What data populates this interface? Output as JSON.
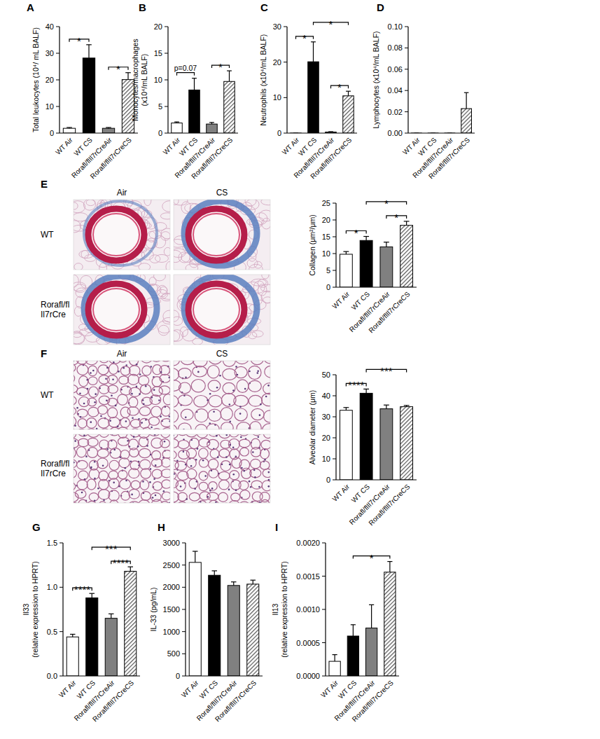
{
  "chart_data": [
    {
      "type": "bar",
      "title": "A",
      "y_label": "Total leukocytes (10⁴/ mL BALF)",
      "categories": [
        "WT Air",
        "WT CS",
        "Rorafl/flIl7rCreAir",
        "Rorafl/flIl7rCreCS"
      ],
      "values": [
        1.8,
        28.2,
        1.8,
        20.1
      ],
      "errors": [
        0.3,
        5.0,
        0.3,
        2.6
      ],
      "colors": [
        "#ffffff",
        "#000000",
        "#808080",
        "#555555"
      ],
      "ylim": [
        0,
        40
      ],
      "yticks": [
        0,
        10,
        20,
        30,
        40
      ],
      "annotations": [
        {
          "text": "*",
          "from": 0,
          "to": 1
        },
        {
          "text": "*",
          "from": 2,
          "to": 3
        }
      ]
    },
    {
      "type": "bar",
      "title": "B",
      "y_label": [
        "Monocytes/macrophages",
        "(x10⁴/mL BALF)"
      ],
      "categories": [
        "WT Air",
        "WT CS",
        "Rorafl/flIl7rCreAir",
        "Rorafl/flIl7rCreCS"
      ],
      "values": [
        1.9,
        8.1,
        1.7,
        9.7
      ],
      "errors": [
        0.2,
        2.2,
        0.3,
        2.0
      ],
      "colors": [
        "#ffffff",
        "#000000",
        "#808080",
        "#555555"
      ],
      "ylim": [
        0,
        20
      ],
      "yticks": [
        0,
        5,
        10,
        15,
        20
      ],
      "annotations": [
        {
          "text": "p=0.07",
          "from": 0,
          "to": 1
        },
        {
          "text": "*",
          "from": 2,
          "to": 3
        }
      ]
    },
    {
      "type": "bar",
      "title": "C",
      "y_label": "Neutrophils (x10⁴/mL BALF)",
      "categories": [
        "WT Air",
        "WT CS",
        "Rorafl/flIl7rCreAir",
        "Rorafl/flIl7rCreCS"
      ],
      "values": [
        0,
        20.1,
        0.3,
        10.5
      ],
      "errors": [
        0,
        5.6,
        0.1,
        1.3
      ],
      "colors": [
        "#ffffff",
        "#000000",
        "#808080",
        "#555555"
      ],
      "ylim": [
        0,
        30
      ],
      "yticks": [
        0,
        10,
        20,
        30
      ],
      "annotations": [
        {
          "text": "*",
          "from": 0,
          "to": 1
        },
        {
          "text": "*",
          "from": 1,
          "to": 3
        },
        {
          "text": "*",
          "from": 2,
          "to": 3
        }
      ]
    },
    {
      "type": "bar",
      "title": "D",
      "y_label": "Lymphocytes (x10⁴/mL BALF)",
      "categories": [
        "WT Air",
        "WT CS",
        "Rorafl/flIl7rCreAir",
        "Rorafl/flIl7rCreCS"
      ],
      "values": [
        0,
        0,
        0,
        0.023
      ],
      "errors": [
        0,
        0,
        0,
        0.015
      ],
      "colors": [
        "#ffffff",
        "#000000",
        "#808080",
        "#555555"
      ],
      "ylim": [
        0,
        0.1
      ],
      "yticks": [
        {
          "value": 0,
          "label": "0.00"
        },
        {
          "value": 0.02,
          "label": "0.02"
        },
        {
          "value": 0.04,
          "label": "0.04"
        },
        {
          "value": 0.06,
          "label": "0.06"
        },
        {
          "value": 0.08,
          "label": "0.08"
        },
        {
          "value": 0.1,
          "label": "0.10"
        }
      ],
      "annotations": []
    },
    {
      "type": "bar",
      "title": "E",
      "y_label": "Collagen (μm²/μm)",
      "categories": [
        "WT Air",
        "WT CS",
        "Rorafl/flIl7rCreAir",
        "Rorafl/flIl7rCreCS"
      ],
      "values": [
        9.8,
        13.9,
        12.0,
        18.4
      ],
      "errors": [
        0.8,
        1.2,
        1.4,
        1.2
      ],
      "colors": [
        "#ffffff",
        "#000000",
        "#808080",
        "#555555"
      ],
      "ylim": [
        0,
        25
      ],
      "yticks": [
        0,
        5,
        10,
        15,
        20,
        25
      ],
      "annotations": [
        {
          "text": "*",
          "from": 0,
          "to": 1
        },
        {
          "text": "*",
          "from": 1,
          "to": 3
        },
        {
          "text": "*",
          "from": 2,
          "to": 3
        }
      ]
    },
    {
      "type": "bar",
      "title": "F",
      "y_label": "Alveolar diameter (μm)",
      "categories": [
        "WT Air",
        "WT CS",
        "Rorafl/flIl7rCreAir",
        "Rorafl/flIl7rCreCS"
      ],
      "values": [
        33.1,
        41.2,
        33.8,
        34.8
      ],
      "errors": [
        1.3,
        2.0,
        1.8,
        0.6
      ],
      "colors": [
        "#ffffff",
        "#000000",
        "#808080",
        "#555555"
      ],
      "ylim": [
        0,
        50
      ],
      "yticks": [
        0,
        10,
        20,
        30,
        40,
        50
      ],
      "annotations": [
        {
          "text": "****",
          "from": 0,
          "to": 1
        },
        {
          "text": "***",
          "from": 1,
          "to": 3
        }
      ]
    },
    {
      "type": "bar",
      "title": "G",
      "y_label": [
        "Il33",
        "(relative expression to HPRT)"
      ],
      "categories": [
        "WT Air",
        "WT CS",
        "Rorafl/flIl7rCreAir",
        "Rorafl/flIl7rCreCS"
      ],
      "values": [
        0.44,
        0.88,
        0.65,
        1.18
      ],
      "errors": [
        0.03,
        0.05,
        0.05,
        0.05
      ],
      "colors": [
        "#ffffff",
        "#000000",
        "#808080",
        "#555555"
      ],
      "ylim": [
        0,
        1.5
      ],
      "yticks": [
        {
          "value": 0,
          "label": "0.0"
        },
        {
          "value": 0.5,
          "label": "0.5"
        },
        {
          "value": 1,
          "label": "1.0"
        },
        {
          "value": 1.5,
          "label": "1.5"
        }
      ],
      "annotations": [
        {
          "text": "****",
          "from": 0,
          "to": 1
        },
        {
          "text": "***",
          "from": 1,
          "to": 3
        },
        {
          "text": "****",
          "from": 2,
          "to": 3
        }
      ]
    },
    {
      "type": "bar",
      "title": "H",
      "y_label": "IL-33 (pg/mL)",
      "categories": [
        "WT Air",
        "WT CS",
        "Rorafl/flIl7rCreAir",
        "Rorafl/flIl7rCreCS"
      ],
      "values": [
        2560,
        2270,
        2040,
        2070
      ],
      "errors": [
        250,
        100,
        80,
        90
      ],
      "colors": [
        "#ffffff",
        "#000000",
        "#808080",
        "#555555"
      ],
      "ylim": [
        0,
        3000
      ],
      "yticks": [
        0,
        500,
        1000,
        1500,
        2000,
        2500,
        3000
      ],
      "annotations": []
    },
    {
      "type": "bar",
      "title": "I",
      "y_label": [
        "Il13",
        "(relative expression to HPRT)"
      ],
      "categories": [
        "WT Air",
        "WT CS",
        "Rorafl/flIl7rCreAir",
        "Rorafl/flIl7rCreCS"
      ],
      "values": [
        0.00022,
        0.0006,
        0.00072,
        0.00156
      ],
      "errors": [
        0.0001,
        0.00017,
        0.00035,
        0.00016
      ],
      "colors": [
        "#ffffff",
        "#000000",
        "#808080",
        "#555555"
      ],
      "ylim": [
        0,
        0.002
      ],
      "yticks": [
        {
          "value": 0,
          "label": "0.0000"
        },
        {
          "value": 0.0005,
          "label": "0.0005"
        },
        {
          "value": 0.001,
          "label": "0.0010"
        },
        {
          "value": 0.0015,
          "label": "0.0015"
        },
        {
          "value": 0.002,
          "label": "0.0020"
        }
      ],
      "annotations": [
        {
          "text": "*",
          "from": 1,
          "to": 3
        }
      ]
    }
  ],
  "micrographs": [
    {
      "columns": [
        "Air",
        "CS"
      ],
      "rows": [
        "WT",
        "Rorafl/fl\nIl7rCre"
      ]
    },
    {
      "columns": [
        "Air",
        "CS"
      ],
      "rows": [
        "WT",
        "Rorafl/fl\nIl7rCre"
      ]
    }
  ]
}
